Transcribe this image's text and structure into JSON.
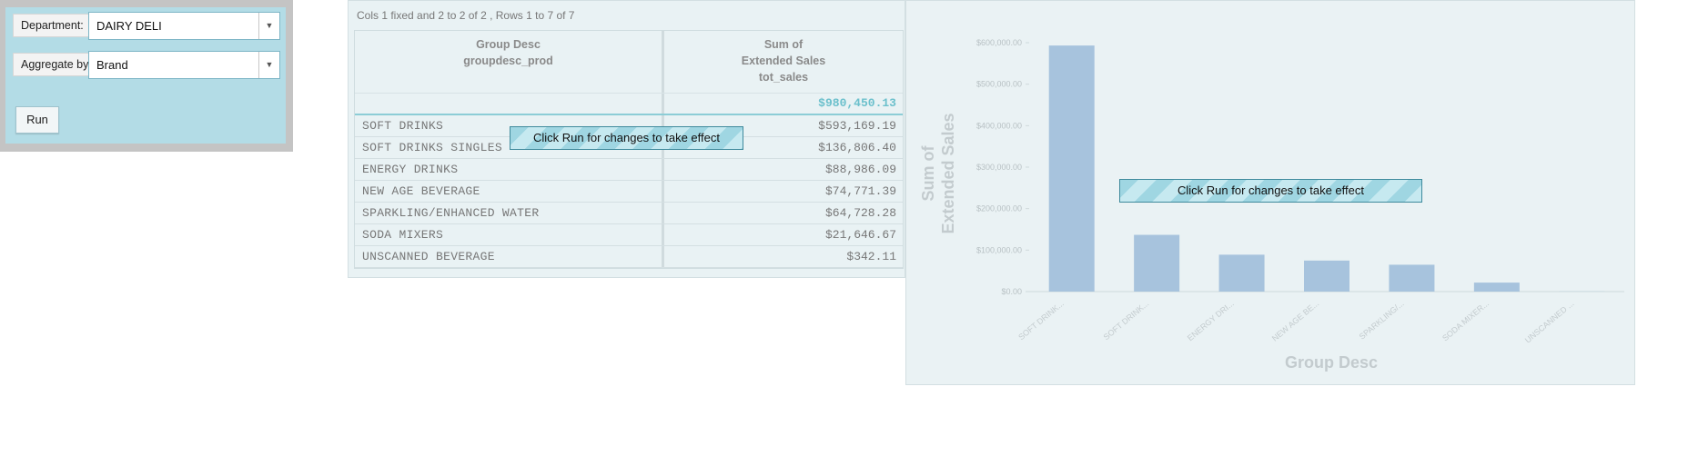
{
  "controls": {
    "department_label": "Department:",
    "department_value": "DAIRY DELI",
    "aggregate_label": "Aggregate by:",
    "aggregate_value": "Brand",
    "run_label": "Run"
  },
  "table": {
    "info": "Cols 1 fixed and 2 to 2 of 2 , Rows 1 to 7 of 7",
    "header": {
      "col1_line1": "Group Desc",
      "col1_line2": "groupdesc_prod",
      "col2_line1": "Sum of",
      "col2_line2": "Extended Sales",
      "col2_line3": "tot_sales"
    },
    "total": "$980,450.13",
    "rows": [
      {
        "group": "SOFT DRINKS",
        "sales": "$593,169.19"
      },
      {
        "group": "SOFT DRINKS SINGLES",
        "sales": "$136,806.40"
      },
      {
        "group": "ENERGY DRINKS",
        "sales": "$88,986.09"
      },
      {
        "group": "NEW AGE BEVERAGE",
        "sales": "$74,771.39"
      },
      {
        "group": "SPARKLING/ENHANCED WATER",
        "sales": "$64,728.28"
      },
      {
        "group": "SODA MIXERS",
        "sales": "$21,646.67"
      },
      {
        "group": "UNSCANNED BEVERAGE",
        "sales": "$342.11"
      }
    ]
  },
  "notices": {
    "table_notice": "Click Run for changes to take effect",
    "chart_notice": "Click Run for changes to take effect"
  },
  "chart_data": {
    "type": "bar",
    "xlabel": "Group Desc",
    "ylabel_line1": "Sum of",
    "ylabel_line2": "Extended Sales",
    "categories": [
      "SOFT DRINK...",
      "SOFT DRINK...",
      "ENERGY DRI...",
      "NEW AGE BE...",
      "SPARKLING/...",
      "SODA MIXER...",
      "UNSCANNED ..."
    ],
    "values": [
      593169.19,
      136806.4,
      88986.09,
      74771.39,
      64728.28,
      21646.67,
      342.11
    ],
    "yticks": [
      "$0.00",
      "$100,000.00",
      "$200,000.00",
      "$300,000.00",
      "$400,000.00",
      "$500,000.00",
      "$600,000.00"
    ],
    "ylim": [
      0,
      600000
    ],
    "bar_color": "#a7c3dd",
    "grid": false
  }
}
